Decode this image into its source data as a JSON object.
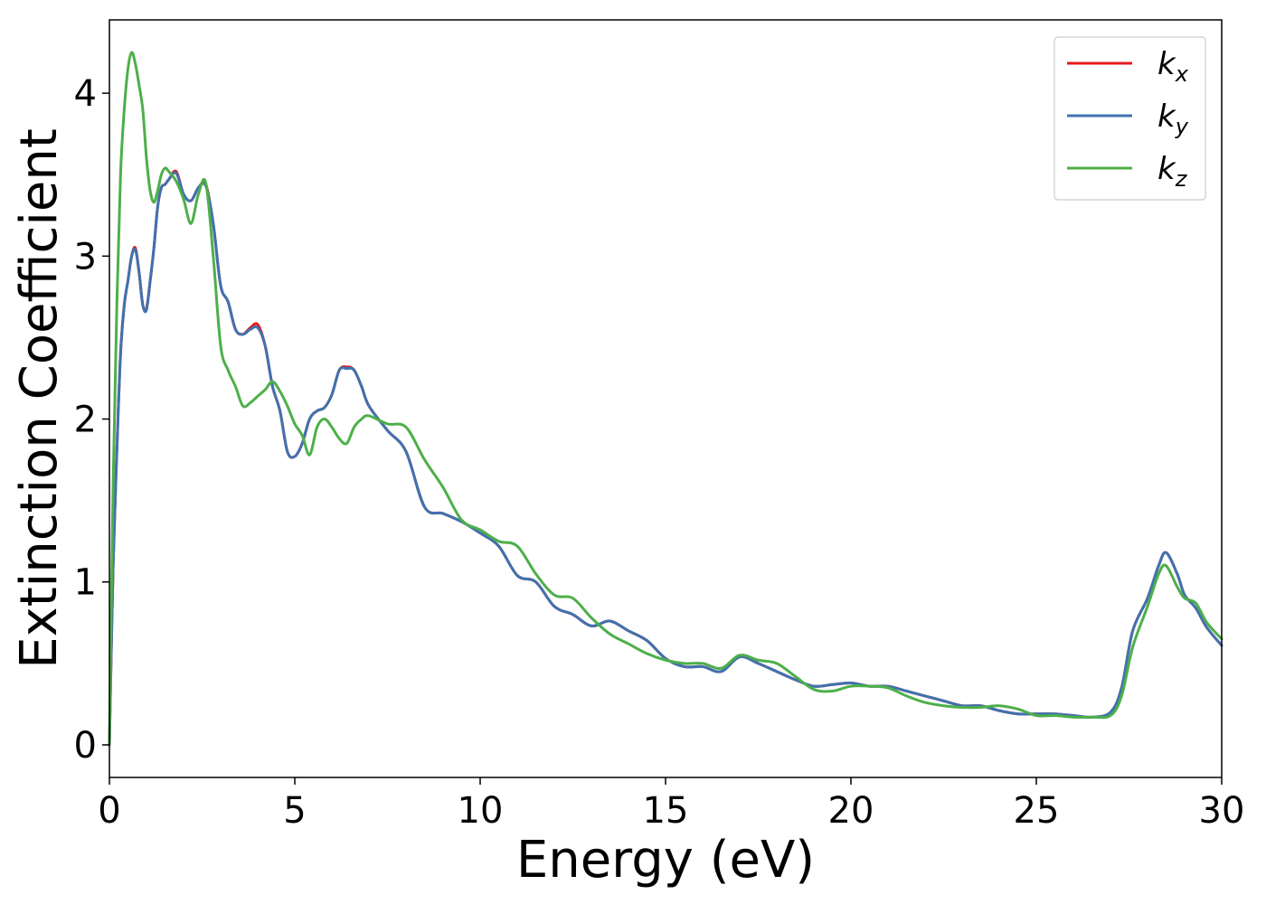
{
  "chart_data": {
    "type": "line",
    "title": "",
    "xlabel": "Energy (eV)",
    "ylabel": "Extinction Coefficient",
    "xlim": [
      0,
      30
    ],
    "ylim": [
      -0.2,
      4.45
    ],
    "xticks": [
      0,
      5,
      10,
      15,
      20,
      25,
      30
    ],
    "xtick_labels": [
      "0",
      "5",
      "10",
      "15",
      "20",
      "25",
      "30"
    ],
    "yticks": [
      0,
      1,
      2,
      3,
      4
    ],
    "ytick_labels": [
      "0",
      "1",
      "2",
      "3",
      "4"
    ],
    "grid": false,
    "legend_position": "top-right",
    "series": [
      {
        "name": "k_x",
        "legend_base": "k",
        "legend_sub": "x",
        "color": "#e41a1c",
        "x": [
          0.0,
          0.1,
          0.2,
          0.3,
          0.4,
          0.5,
          0.6,
          0.7,
          0.8,
          0.9,
          1.0,
          1.1,
          1.2,
          1.3,
          1.4,
          1.5,
          1.6,
          1.8,
          2.0,
          2.2,
          2.4,
          2.6,
          2.8,
          3.0,
          3.2,
          3.4,
          3.6,
          3.8,
          4.0,
          4.2,
          4.4,
          4.6,
          4.8,
          5.0,
          5.2,
          5.4,
          5.6,
          5.8,
          6.0,
          6.2,
          6.4,
          6.6,
          6.8,
          7.0,
          7.5,
          8.0,
          8.5,
          9.0,
          9.5,
          10.0,
          10.5,
          11.0,
          11.5,
          12.0,
          12.5,
          13.0,
          13.5,
          14.0,
          14.5,
          15.0,
          15.5,
          16.0,
          16.5,
          17.0,
          17.5,
          18.0,
          18.5,
          19.0,
          19.5,
          20.0,
          20.5,
          21.0,
          21.5,
          22.0,
          22.5,
          23.0,
          23.5,
          24.0,
          24.5,
          25.0,
          25.5,
          26.0,
          26.5,
          27.0,
          27.3,
          27.6,
          28.0,
          28.3,
          28.5,
          28.8,
          29.0,
          29.3,
          29.6,
          30.0
        ],
        "y": [
          0.0,
          1.1,
          1.8,
          2.4,
          2.7,
          2.85,
          3.0,
          3.05,
          2.9,
          2.7,
          2.68,
          2.85,
          3.05,
          3.3,
          3.42,
          3.44,
          3.47,
          3.52,
          3.38,
          3.34,
          3.42,
          3.44,
          3.2,
          2.82,
          2.72,
          2.55,
          2.52,
          2.56,
          2.58,
          2.45,
          2.2,
          2.05,
          1.8,
          1.77,
          1.85,
          2.0,
          2.05,
          2.07,
          2.15,
          2.3,
          2.32,
          2.3,
          2.2,
          2.08,
          1.93,
          1.8,
          1.46,
          1.42,
          1.37,
          1.3,
          1.22,
          1.04,
          1.0,
          0.85,
          0.8,
          0.73,
          0.76,
          0.7,
          0.64,
          0.53,
          0.48,
          0.48,
          0.45,
          0.54,
          0.5,
          0.45,
          0.4,
          0.36,
          0.37,
          0.38,
          0.36,
          0.36,
          0.33,
          0.3,
          0.27,
          0.24,
          0.24,
          0.21,
          0.19,
          0.19,
          0.19,
          0.18,
          0.17,
          0.2,
          0.35,
          0.7,
          0.9,
          1.1,
          1.18,
          1.05,
          0.92,
          0.84,
          0.72,
          0.61
        ]
      },
      {
        "name": "k_y",
        "legend_base": "k",
        "legend_sub": "y",
        "color": "#3f72af",
        "x": [
          0.0,
          0.1,
          0.2,
          0.3,
          0.4,
          0.5,
          0.6,
          0.7,
          0.8,
          0.9,
          1.0,
          1.1,
          1.2,
          1.3,
          1.4,
          1.5,
          1.6,
          1.8,
          2.0,
          2.2,
          2.4,
          2.6,
          2.8,
          3.0,
          3.2,
          3.4,
          3.6,
          3.8,
          4.0,
          4.2,
          4.4,
          4.6,
          4.8,
          5.0,
          5.2,
          5.4,
          5.6,
          5.8,
          6.0,
          6.2,
          6.4,
          6.6,
          6.8,
          7.0,
          7.5,
          8.0,
          8.5,
          9.0,
          9.5,
          10.0,
          10.5,
          11.0,
          11.5,
          12.0,
          12.5,
          13.0,
          13.5,
          14.0,
          14.5,
          15.0,
          15.5,
          16.0,
          16.5,
          17.0,
          17.5,
          18.0,
          18.5,
          19.0,
          19.5,
          20.0,
          20.5,
          21.0,
          21.5,
          22.0,
          22.5,
          23.0,
          23.5,
          24.0,
          24.5,
          25.0,
          25.5,
          26.0,
          26.5,
          27.0,
          27.3,
          27.6,
          28.0,
          28.3,
          28.5,
          28.8,
          29.0,
          29.3,
          29.6,
          30.0
        ],
        "y": [
          0.0,
          1.1,
          1.8,
          2.4,
          2.7,
          2.85,
          3.0,
          3.04,
          2.9,
          2.7,
          2.67,
          2.85,
          3.05,
          3.3,
          3.42,
          3.44,
          3.47,
          3.51,
          3.38,
          3.34,
          3.42,
          3.43,
          3.2,
          2.82,
          2.72,
          2.55,
          2.52,
          2.55,
          2.56,
          2.45,
          2.2,
          2.05,
          1.8,
          1.77,
          1.85,
          2.0,
          2.05,
          2.07,
          2.15,
          2.3,
          2.31,
          2.3,
          2.2,
          2.08,
          1.93,
          1.8,
          1.46,
          1.42,
          1.37,
          1.3,
          1.22,
          1.04,
          1.0,
          0.85,
          0.8,
          0.73,
          0.76,
          0.7,
          0.64,
          0.53,
          0.48,
          0.48,
          0.45,
          0.54,
          0.5,
          0.45,
          0.4,
          0.36,
          0.37,
          0.38,
          0.36,
          0.36,
          0.33,
          0.3,
          0.27,
          0.24,
          0.24,
          0.21,
          0.19,
          0.19,
          0.19,
          0.18,
          0.17,
          0.2,
          0.35,
          0.7,
          0.9,
          1.1,
          1.18,
          1.05,
          0.92,
          0.84,
          0.72,
          0.61
        ]
      },
      {
        "name": "k_z",
        "legend_base": "k",
        "legend_sub": "z",
        "color": "#4daf4a",
        "x": [
          0.0,
          0.1,
          0.2,
          0.3,
          0.4,
          0.5,
          0.6,
          0.7,
          0.8,
          0.9,
          1.0,
          1.1,
          1.2,
          1.3,
          1.4,
          1.5,
          1.6,
          1.8,
          2.0,
          2.2,
          2.4,
          2.6,
          2.8,
          3.0,
          3.2,
          3.4,
          3.6,
          3.8,
          4.0,
          4.2,
          4.4,
          4.6,
          4.8,
          5.0,
          5.2,
          5.4,
          5.6,
          5.8,
          6.0,
          6.2,
          6.4,
          6.6,
          6.8,
          7.0,
          7.5,
          8.0,
          8.5,
          9.0,
          9.5,
          10.0,
          10.5,
          11.0,
          11.5,
          12.0,
          12.5,
          13.0,
          13.5,
          14.0,
          14.5,
          15.0,
          15.5,
          16.0,
          16.5,
          17.0,
          17.5,
          18.0,
          18.5,
          19.0,
          19.5,
          20.0,
          20.5,
          21.0,
          21.5,
          22.0,
          22.5,
          23.0,
          23.5,
          24.0,
          24.5,
          25.0,
          25.5,
          26.0,
          26.5,
          27.0,
          27.3,
          27.6,
          28.0,
          28.3,
          28.5,
          28.8,
          29.0,
          29.3,
          29.6,
          30.0
        ],
        "y": [
          0.0,
          1.6,
          2.7,
          3.5,
          3.9,
          4.15,
          4.25,
          4.18,
          4.05,
          3.9,
          3.6,
          3.4,
          3.33,
          3.4,
          3.5,
          3.54,
          3.52,
          3.46,
          3.35,
          3.2,
          3.38,
          3.45,
          3.0,
          2.45,
          2.3,
          2.2,
          2.08,
          2.1,
          2.14,
          2.18,
          2.23,
          2.17,
          2.08,
          1.97,
          1.9,
          1.78,
          1.95,
          2.0,
          1.95,
          1.88,
          1.85,
          1.95,
          2.0,
          2.02,
          1.97,
          1.95,
          1.75,
          1.58,
          1.38,
          1.32,
          1.25,
          1.22,
          1.05,
          0.92,
          0.9,
          0.78,
          0.68,
          0.62,
          0.56,
          0.52,
          0.5,
          0.5,
          0.47,
          0.55,
          0.52,
          0.5,
          0.42,
          0.34,
          0.33,
          0.36,
          0.36,
          0.35,
          0.3,
          0.26,
          0.24,
          0.23,
          0.23,
          0.24,
          0.22,
          0.18,
          0.18,
          0.17,
          0.17,
          0.18,
          0.3,
          0.6,
          0.85,
          1.05,
          1.1,
          0.97,
          0.9,
          0.87,
          0.75,
          0.65
        ]
      }
    ]
  }
}
